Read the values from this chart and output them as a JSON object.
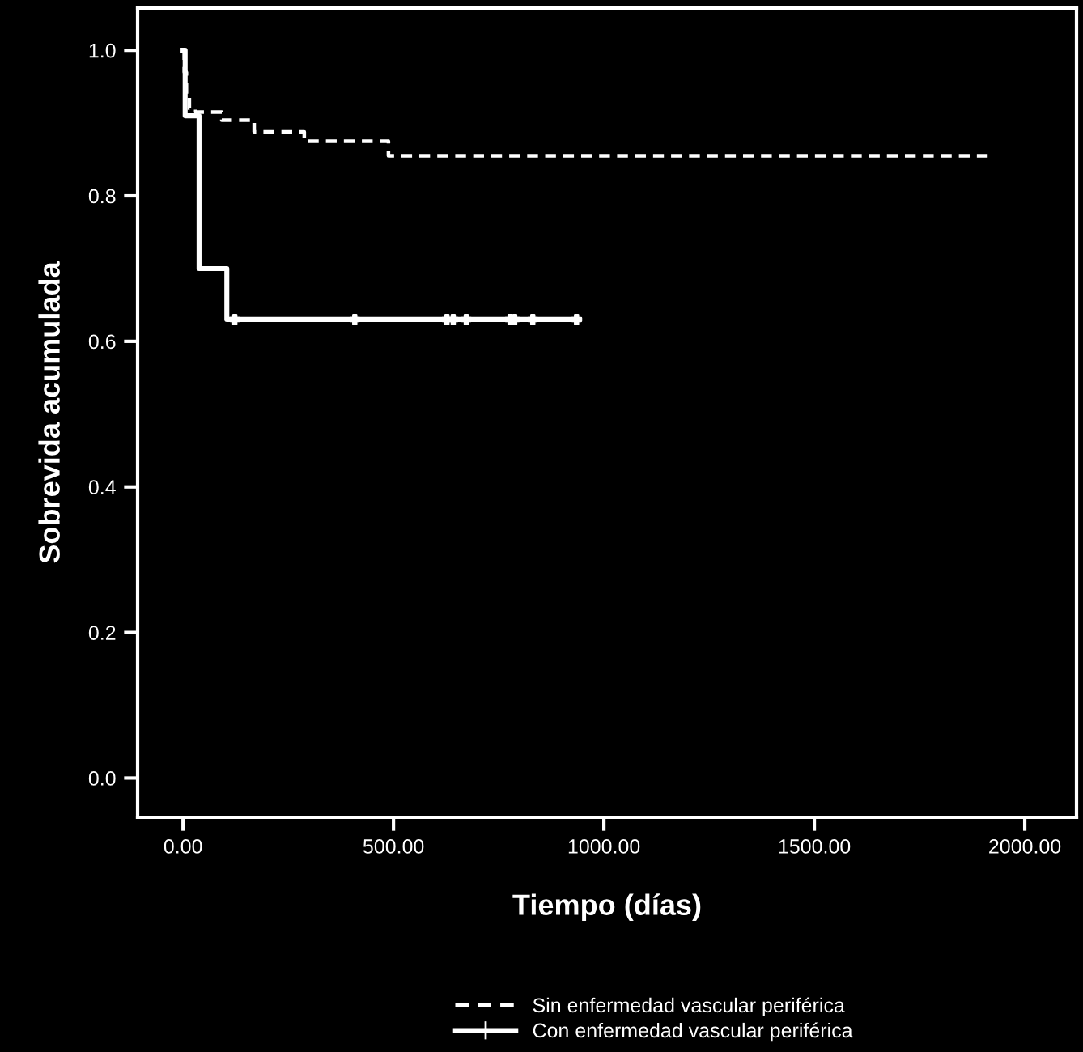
{
  "chart_data": {
    "type": "step",
    "xlabel": "Tiempo (días)",
    "ylabel": "Sobrevida acumulada",
    "series": [
      {
        "name": "Sin enfermedad vascular periférica",
        "color": "#ffffff",
        "line_style": "dashed",
        "x": [
          0,
          3,
          8,
          15,
          30,
          92,
          169,
          288,
          488,
          1923
        ],
        "values": [
          1.0,
          0.97,
          0.94,
          0.92,
          0.915,
          0.904,
          0.888,
          0.875,
          0.855,
          0.855
        ]
      },
      {
        "name": "Con enfermedad vascular periférica",
        "color": "#ffffff",
        "line_style": "solid",
        "x": [
          0,
          5,
          38,
          104,
          935
        ],
        "values": [
          1.0,
          0.91,
          0.7,
          0.63,
          0.63
        ]
      },
      {
        "type": "scatter",
        "color": "#ffffff",
        "marker": "cross",
        "x": [
          123,
          408,
          627,
          642,
          673,
          777,
          788,
          831,
          935
        ],
        "values": [
          0.63,
          0.63,
          0.63,
          0.63,
          0.63,
          0.63,
          0.63,
          0.63,
          0.63
        ]
      }
    ],
    "xlim": [
      -108,
      2123
    ],
    "ylim": [
      -0.054,
      1.058
    ],
    "xticks": [
      {
        "value": 0,
        "label": "0.00"
      },
      {
        "value": 500,
        "label": "500.00"
      },
      {
        "value": 1000,
        "label": "1000.00"
      },
      {
        "value": 1500,
        "label": "1500.00"
      },
      {
        "value": 2000,
        "label": "2000.00"
      }
    ],
    "yticks": [
      {
        "value": 0.0,
        "label": "0.0"
      },
      {
        "value": 0.2,
        "label": "0.2"
      },
      {
        "value": 0.4,
        "label": "0.4"
      },
      {
        "value": 0.6,
        "label": "0.6"
      },
      {
        "value": 0.8,
        "label": "0.8"
      },
      {
        "value": 1.0,
        "label": "1.0"
      }
    ],
    "grid": false,
    "legend": "bottom"
  }
}
